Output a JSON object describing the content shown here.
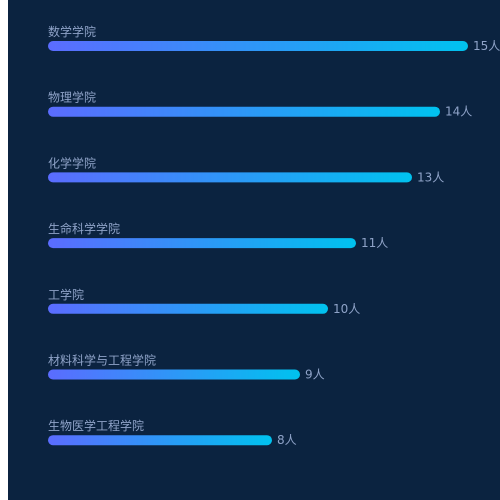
{
  "colors": {
    "background": "#0b2340",
    "bar_gradient_start": "#5b6cff",
    "bar_gradient_end": "#00c2ef",
    "label": "#8fa3c8"
  },
  "chart_data": {
    "type": "bar",
    "orientation": "horizontal",
    "categories": [
      "数学学院",
      "物理学院",
      "化学学院",
      "生命科学学院",
      "工学院",
      "材料科学与工程学院",
      "生物医学工程学院"
    ],
    "values": [
      15,
      14,
      13,
      11,
      10,
      9,
      8
    ],
    "value_labels": [
      "15人",
      "14人",
      "13人",
      "11人",
      "10人",
      "9人",
      "8人"
    ],
    "xlim": [
      0,
      15
    ],
    "grid": false,
    "legend": "none"
  }
}
